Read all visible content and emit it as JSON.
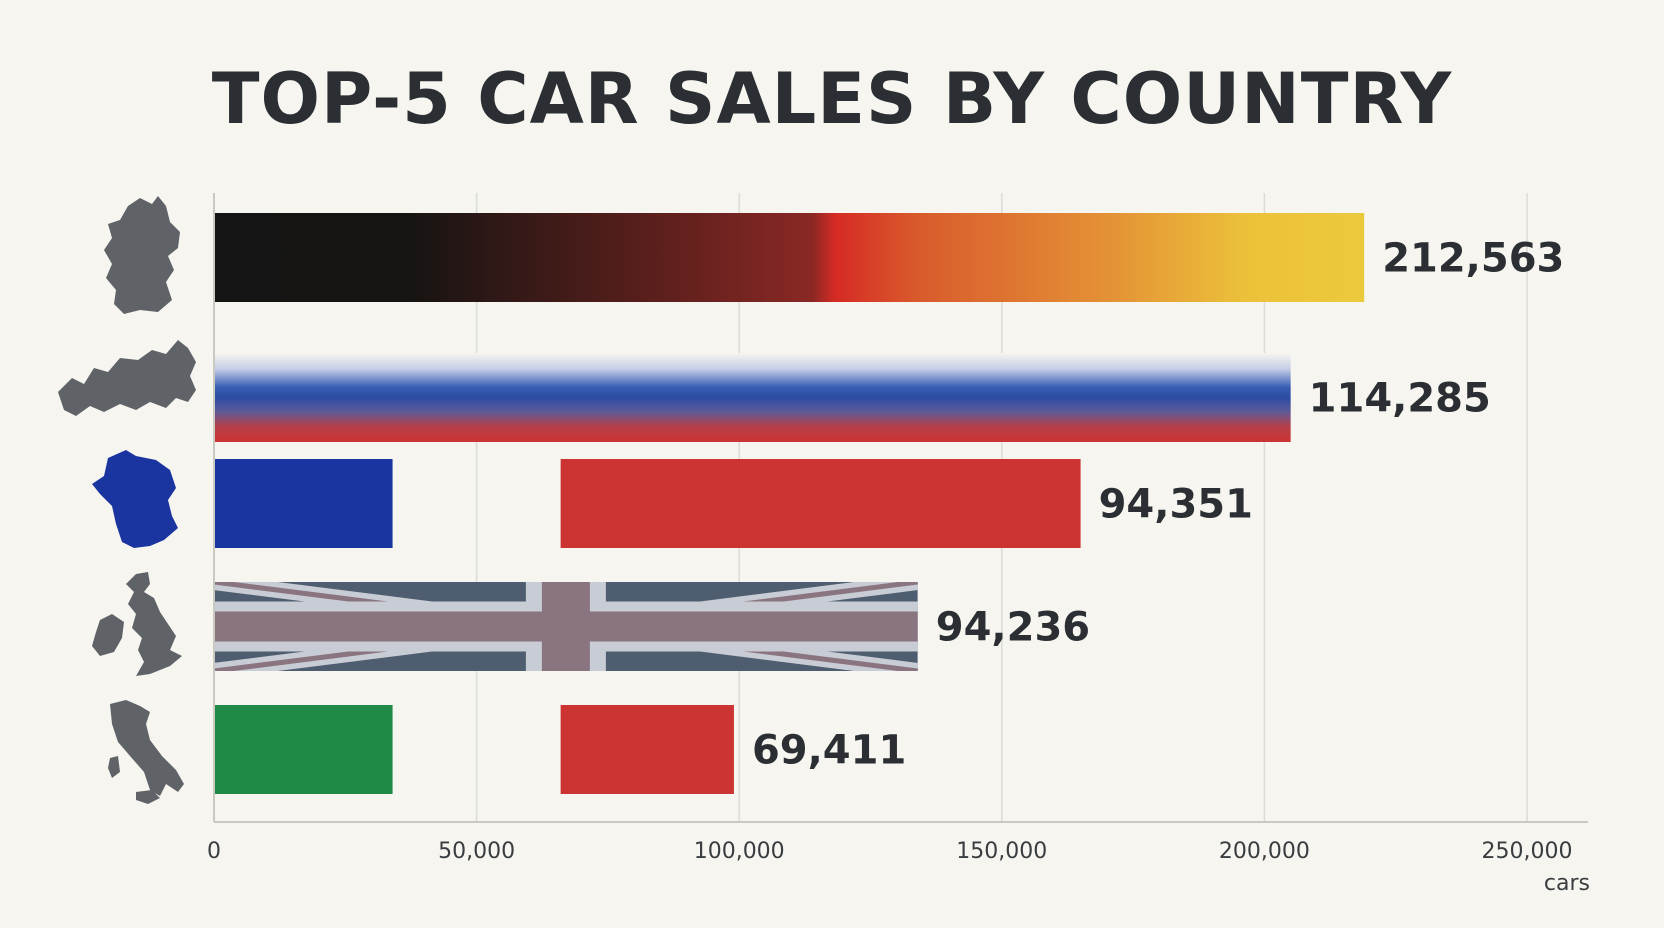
{
  "chart_data": {
    "type": "bar",
    "orientation": "horizontal",
    "title": "TOP-5 CAR SALES BY COUNTRY",
    "xlabel": "cars",
    "ylabel": "",
    "xlim": [
      0,
      250000
    ],
    "xticks": [
      0,
      50000,
      100000,
      150000,
      200000,
      250000
    ],
    "xtick_labels": [
      "0",
      "50,000",
      "100,000",
      "150,000",
      "200,000",
      "250,000"
    ],
    "grid": true,
    "categories": [
      "Germany",
      "Russia",
      "France",
      "United Kingdom",
      "Italy"
    ],
    "values": [
      212563,
      114285,
      94351,
      94236,
      69411
    ],
    "value_labels": [
      "212,563",
      "114,285",
      "94,351",
      "94,236",
      "69,411"
    ],
    "bar_display_extent": [
      219000,
      205000,
      165000,
      134000,
      99000
    ],
    "bar_styles": [
      "germany-flag-gradient",
      "russia-flag-gradient",
      "france-flag",
      "uk-flag",
      "italy-flag"
    ],
    "icons": [
      "germany-map-icon",
      "russia-map-icon",
      "france-map-icon",
      "uk-map-icon",
      "italy-map-icon"
    ],
    "colors": {
      "germany": [
        "#151515",
        "#d62a24",
        "#ecc93a"
      ],
      "russia": [
        "#ffffff",
        "#2f4fa8",
        "#cc3333"
      ],
      "france": [
        "#1a35a0",
        "#ffffff",
        "#cc3333"
      ],
      "uk": [
        "#4f5d70",
        "#c8ccd4",
        "#8a7480"
      ],
      "italy": [
        "#1f8a46",
        "#ffffff",
        "#cc3333"
      ],
      "map_gray": "#5f6368",
      "map_france": "#1a35a0",
      "grid": "#dcdcd6",
      "text": "#2b2f33"
    }
  }
}
